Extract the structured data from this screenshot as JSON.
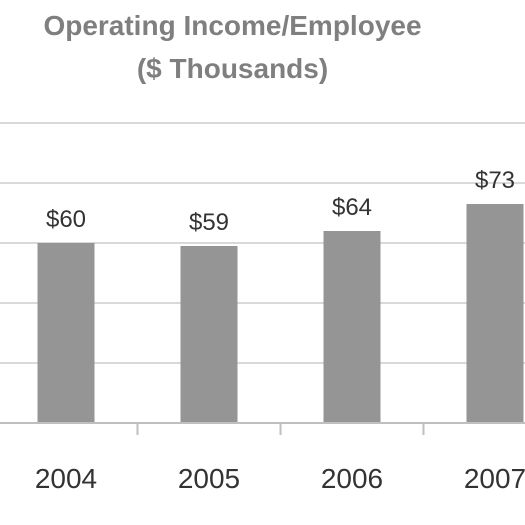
{
  "chart_data": {
    "type": "bar",
    "title_line1": "Operating Income/Employee",
    "title_line2": "($ Thousands)",
    "categories": [
      "2004",
      "2005",
      "2006",
      "2007"
    ],
    "values": [
      60,
      59,
      64,
      73
    ],
    "data_labels": [
      "$60",
      "$59",
      "$64",
      "$73"
    ],
    "ylim": [
      0,
      100
    ],
    "grid": true,
    "bar_color": "#959595",
    "grid_color": "#d9d9d9",
    "axis_color": "#bfbfbf"
  }
}
